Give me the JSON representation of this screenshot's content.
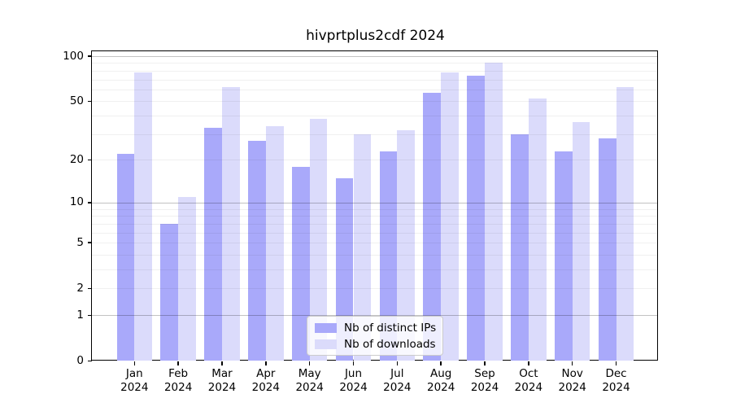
{
  "title": "hivprtplus2cdf 2024",
  "chart_data": {
    "type": "bar",
    "title": "hivprtplus2cdf 2024",
    "categories": [
      "Jan",
      "Feb",
      "Mar",
      "Apr",
      "May",
      "Jun",
      "Jul",
      "Aug",
      "Sep",
      "Oct",
      "Nov",
      "Dec"
    ],
    "x_tick_second_line": "2024",
    "series": [
      {
        "name": "Nb of distinct IPs",
        "color": "#a9a9fa",
        "values": [
          22,
          7,
          33,
          27,
          18,
          15,
          23,
          57,
          74,
          30,
          23,
          28
        ]
      },
      {
        "name": "Nb of downloads",
        "color": "#dbdbfb",
        "values": [
          78,
          11,
          62,
          34,
          38,
          30,
          32,
          78,
          90,
          52,
          36,
          62
        ]
      }
    ],
    "y_ticks": [
      0,
      1,
      2,
      5,
      10,
      20,
      50,
      100
    ],
    "y_major_gridlines": [
      1,
      10,
      100
    ],
    "y_minor_gridlines": [
      2,
      3,
      4,
      5,
      6,
      7,
      8,
      9,
      20,
      30,
      40,
      50,
      60,
      70,
      80,
      90
    ],
    "y_scale": "log1p",
    "ylim": [
      0,
      110
    ],
    "grid": true,
    "legend_position": "bottom-center",
    "xlabel": "",
    "ylabel": ""
  }
}
